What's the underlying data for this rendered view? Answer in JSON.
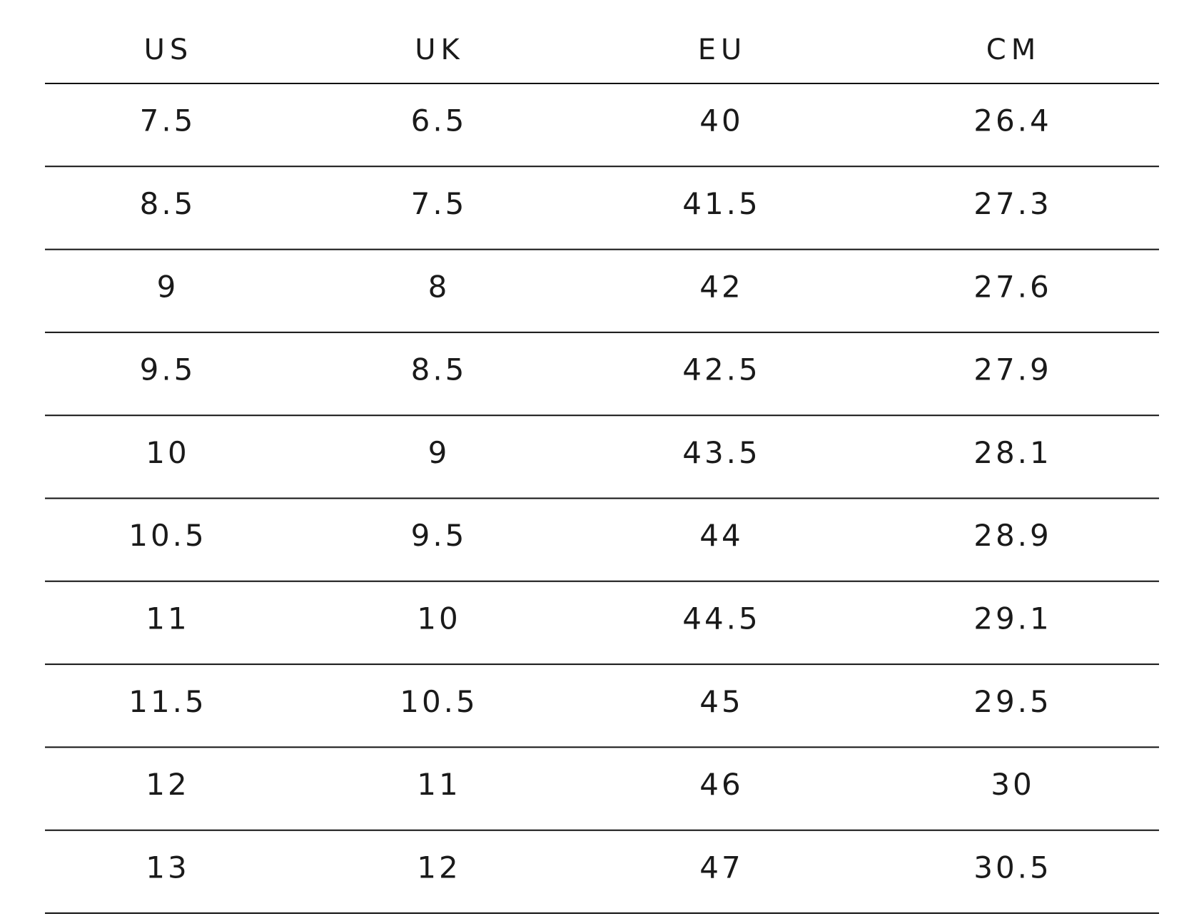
{
  "table": {
    "header": [
      "US",
      "UK",
      "EU",
      "CM"
    ],
    "rows": [
      [
        "7.5",
        "6.5",
        "40",
        "26.4"
      ],
      [
        "8.5",
        "7.5",
        "41.5",
        "27.3"
      ],
      [
        "9",
        "8",
        "42",
        "27.6"
      ],
      [
        "9.5",
        "8.5",
        "42.5",
        "27.9"
      ],
      [
        "10",
        "9",
        "43.5",
        "28.1"
      ],
      [
        "10.5",
        "9.5",
        "44",
        "28.9"
      ],
      [
        "11",
        "10",
        "44.5",
        "29.1"
      ],
      [
        "11.5",
        "10.5",
        "45",
        "29.5"
      ],
      [
        "12",
        "11",
        "46",
        "30"
      ],
      [
        "13",
        "12",
        "47",
        "30.5"
      ]
    ]
  }
}
